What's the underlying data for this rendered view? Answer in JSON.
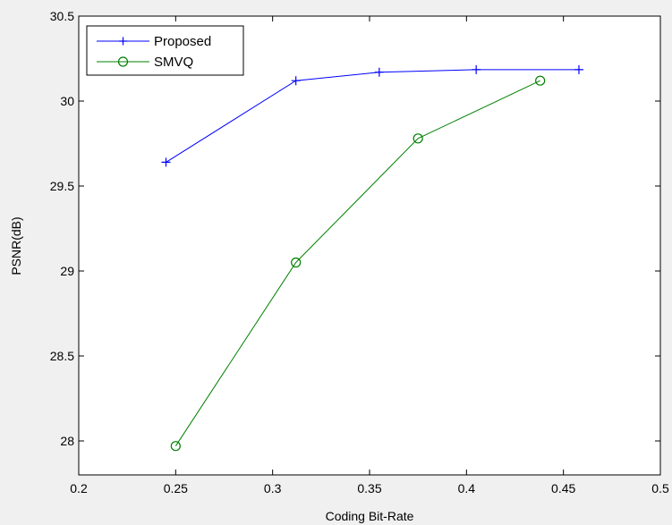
{
  "chart_data": {
    "type": "line",
    "title": "",
    "xlabel": "Coding Bit-Rate",
    "ylabel": "PSNR(dB)",
    "xlim": [
      0.2,
      0.5
    ],
    "ylim": [
      27.8,
      30.5
    ],
    "x_ticks": [
      0.2,
      0.25,
      0.3,
      0.35,
      0.4,
      0.45,
      0.5
    ],
    "x_tick_labels": [
      "0.2",
      "0.25",
      "0.3",
      "0.35",
      "0.4",
      "0.45",
      "0.5"
    ],
    "y_ticks": [
      28,
      28.5,
      29,
      29.5,
      30,
      30.5
    ],
    "y_tick_labels": [
      "28",
      "28.5",
      "29",
      "29.5",
      "30",
      "30.5"
    ],
    "grid": false,
    "legend_position": "top-left",
    "series": [
      {
        "name": "Proposed",
        "color": "#0000ff",
        "marker": "plus",
        "x": [
          0.245,
          0.312,
          0.355,
          0.405,
          0.458
        ],
        "y": [
          29.64,
          30.12,
          30.17,
          30.185,
          30.185
        ]
      },
      {
        "name": "SMVQ",
        "color": "#008000",
        "marker": "circle",
        "x": [
          0.25,
          0.312,
          0.375,
          0.438
        ],
        "y": [
          27.97,
          29.05,
          29.78,
          30.12
        ]
      }
    ]
  }
}
